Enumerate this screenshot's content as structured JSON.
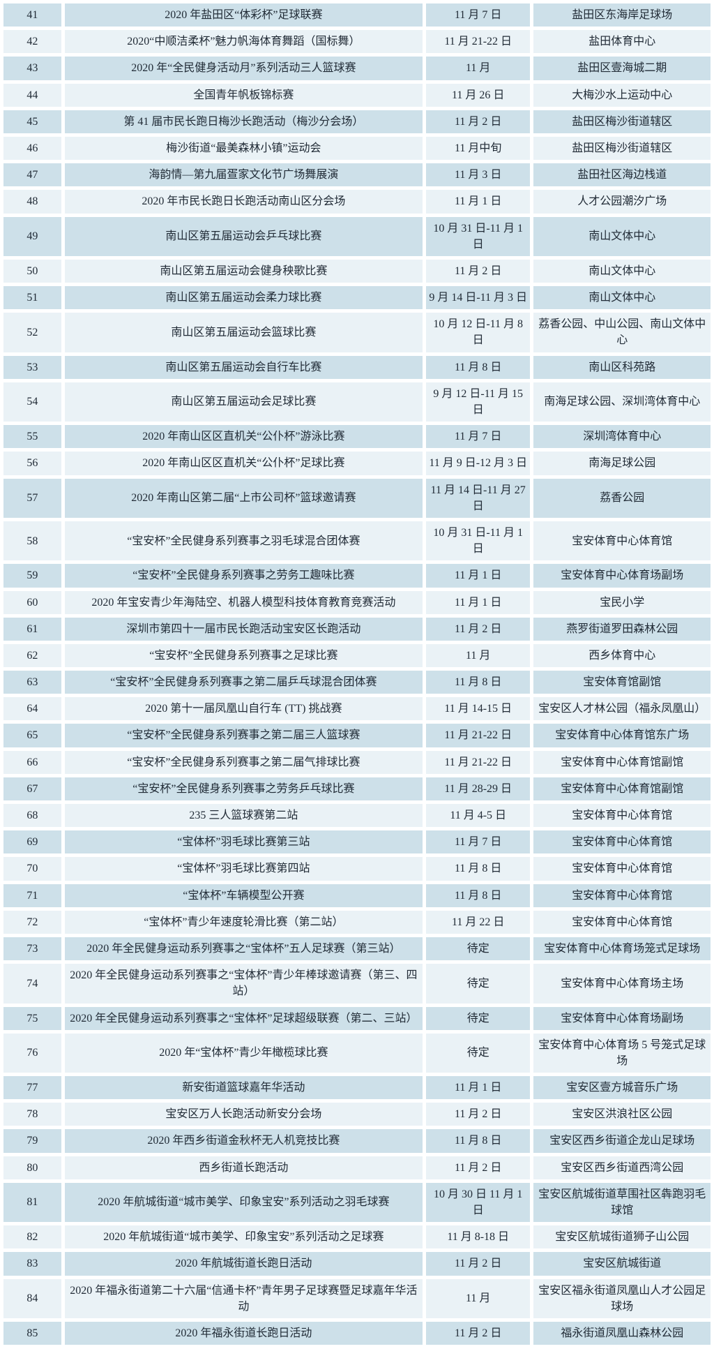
{
  "colors": {
    "row_dark": "#cde0e9",
    "row_light": "#eaf2f6",
    "text": "#212b36",
    "page_bg": "#ffffff"
  },
  "table": {
    "rows": [
      {
        "no": "41",
        "event": "2020 年盐田区“体彩杯”足球联赛",
        "date": "11 月 7 日",
        "venue": "盐田区东海岸足球场"
      },
      {
        "no": "42",
        "event": "2020“中顺洁柔杯”魅力帆海体育舞蹈（国标舞）",
        "date": "11 月 21-22 日",
        "venue": "盐田体育中心"
      },
      {
        "no": "43",
        "event": "2020 年“全民健身活动月”系列活动三人篮球赛",
        "date": "11 月",
        "venue": "盐田区壹海城二期"
      },
      {
        "no": "44",
        "event": "全国青年帆板锦标赛",
        "date": "11 月 26 日",
        "venue": "大梅沙水上运动中心"
      },
      {
        "no": "45",
        "event": "第 41 届市民长跑日梅沙长跑活动（梅沙分会场）",
        "date": "11 月 2 日",
        "venue": "盐田区梅沙街道辖区"
      },
      {
        "no": "46",
        "event": "梅沙街道“最美森林小镇”运动会",
        "date": "11 月中旬",
        "venue": "盐田区梅沙街道辖区"
      },
      {
        "no": "47",
        "event": "海韵情—第九届疍家文化节广场舞展演",
        "date": "11 月 3 日",
        "venue": "盐田社区海边栈道"
      },
      {
        "no": "48",
        "event": "2020 年市民长跑日长跑活动南山区分会场",
        "date": "11 月 1 日",
        "venue": "人才公园潮汐广场"
      },
      {
        "no": "49",
        "event": "南山区第五届运动会乒乓球比赛",
        "date": "10 月 31 日-11 月 1 日",
        "venue": "南山文体中心"
      },
      {
        "no": "50",
        "event": "南山区第五届运动会健身秧歌比赛",
        "date": "11 月 2 日",
        "venue": "南山文体中心"
      },
      {
        "no": "51",
        "event": "南山区第五届运动会柔力球比赛",
        "date": "9 月 14 日-11 月 3 日",
        "venue": "南山文体中心"
      },
      {
        "no": "52",
        "event": "南山区第五届运动会篮球比赛",
        "date": "10 月 12 日-11 月 8 日",
        "venue": "荔香公园、中山公园、南山文体中心"
      },
      {
        "no": "53",
        "event": "南山区第五届运动会自行车比赛",
        "date": "11 月 8 日",
        "venue": "南山区科苑路"
      },
      {
        "no": "54",
        "event": "南山区第五届运动会足球比赛",
        "date": "9 月 12 日-11 月 15 日",
        "venue": "南海足球公园、深圳湾体育中心"
      },
      {
        "no": "55",
        "event": "2020 年南山区区直机关“公仆杯”游泳比赛",
        "date": "11 月 7 日",
        "venue": "深圳湾体育中心"
      },
      {
        "no": "56",
        "event": "2020 年南山区区直机关“公仆杯”足球比赛",
        "date": "11 月 9 日-12 月 3 日",
        "venue": "南海足球公园"
      },
      {
        "no": "57",
        "event": "2020 年南山区第二届“上市公司杯”篮球邀请赛",
        "date": "11 月 14 日-11 月 27 日",
        "venue": "荔香公园"
      },
      {
        "no": "58",
        "event": "“宝安杯”全民健身系列赛事之羽毛球混合团体赛",
        "date": "10 月 31 日-11 月 1 日",
        "venue": "宝安体育中心体育馆"
      },
      {
        "no": "59",
        "event": "“宝安杯”全民健身系列赛事之劳务工趣味比赛",
        "date": "11 月 1 日",
        "venue": "宝安体育中心体育场副场"
      },
      {
        "no": "60",
        "event": "2020 年宝安青少年海陆空、机器人模型科技体育教育竞赛活动",
        "date": "11 月 1 日",
        "venue": "宝民小学"
      },
      {
        "no": "61",
        "event": "深圳市第四十一届市民长跑活动宝安区长跑活动",
        "date": "11 月 2 日",
        "venue": "燕罗街道罗田森林公园"
      },
      {
        "no": "62",
        "event": "“宝安杯”全民健身系列赛事之足球比赛",
        "date": "11 月",
        "venue": "西乡体育中心"
      },
      {
        "no": "63",
        "event": "“宝安杯”全民健身系列赛事之第二届乒乓球混合团体赛",
        "date": "11 月 8 日",
        "venue": "宝安体育馆副馆"
      },
      {
        "no": "64",
        "event": "2020 第十一届凤凰山自行车 (TT) 挑战赛",
        "date": "11 月 14-15 日",
        "venue": "宝安区人才林公园（福永凤凰山）"
      },
      {
        "no": "65",
        "event": "“宝安杯”全民健身系列赛事之第二届三人篮球赛",
        "date": "11 月 21-22 日",
        "venue": "宝安体育中心体育馆东广场"
      },
      {
        "no": "66",
        "event": "“宝安杯”全民健身系列赛事之第二届气排球比赛",
        "date": "11 月 21-22 日",
        "venue": "宝安体育中心体育馆副馆"
      },
      {
        "no": "67",
        "event": "“宝安杯”全民健身系列赛事之劳务乒乓球比赛",
        "date": "11 月 28-29 日",
        "venue": "宝安体育中心体育馆副馆"
      },
      {
        "no": "68",
        "event": "235 三人篮球赛第二站",
        "date": "11 月 4-5 日",
        "venue": "宝安体育中心体育馆"
      },
      {
        "no": "69",
        "event": "“宝体杯”羽毛球比赛第三站",
        "date": "11 月 7 日",
        "venue": "宝安体育中心体育馆"
      },
      {
        "no": "70",
        "event": "“宝体杯”羽毛球比赛第四站",
        "date": "11 月 8 日",
        "venue": "宝安体育中心体育馆"
      },
      {
        "no": "71",
        "event": "“宝体杯”车辆模型公开赛",
        "date": "11 月 8 日",
        "venue": "宝安体育中心体育馆"
      },
      {
        "no": "72",
        "event": "“宝体杯”青少年速度轮滑比赛（第二站）",
        "date": "11 月 22 日",
        "venue": "宝安体育中心体育馆"
      },
      {
        "no": "73",
        "event": "2020 年全民健身运动系列赛事之“宝体杯”五人足球赛（第三站）",
        "date": "待定",
        "venue": "宝安体育中心体育场笼式足球场"
      },
      {
        "no": "74",
        "event": "2020 年全民健身运动系列赛事之“宝体杯”青少年棒球邀请赛（第三、四站）",
        "date": "待定",
        "venue": "宝安体育中心体育场主场"
      },
      {
        "no": "75",
        "event": "2020 年全民健身运动系列赛事之“宝体杯”足球超级联赛（第二、三站）",
        "date": "待定",
        "venue": "宝安体育中心体育场副场"
      },
      {
        "no": "76",
        "event": "2020 年“宝体杯”青少年橄榄球比赛",
        "date": "待定",
        "venue": "宝安体育中心体育场 5 号笼式足球场"
      },
      {
        "no": "77",
        "event": "新安街道篮球嘉年华活动",
        "date": "11 月 1 日",
        "venue": "宝安区壹方城音乐广场"
      },
      {
        "no": "78",
        "event": "宝安区万人长跑活动新安分会场",
        "date": "11 月 2 日",
        "venue": "宝安区洪浪社区公园"
      },
      {
        "no": "79",
        "event": "2020 年西乡街道金秋杯无人机竞技比赛",
        "date": "11 月 8 日",
        "venue": "宝安区西乡街道企龙山足球场"
      },
      {
        "no": "80",
        "event": "西乡街道长跑活动",
        "date": "11 月 2 日",
        "venue": "宝安区西乡街道西湾公园"
      },
      {
        "no": "81",
        "event": "2020 年航城街道“城市美学、印象宝安”系列活动之羽毛球赛",
        "date": "10 月 30 日 11 月 1 日",
        "venue": "宝安区航城街道草围社区犇跑羽毛球馆"
      },
      {
        "no": "82",
        "event": "2020 年航城街道“城市美学、印象宝安”系列活动之足球赛",
        "date": "11 月 8-18 日",
        "venue": "宝安区航城街道狮子山公园"
      },
      {
        "no": "83",
        "event": "2020 年航城街道长跑日活动",
        "date": "11 月 2 日",
        "venue": "宝安区航城街道"
      },
      {
        "no": "84",
        "event": "2020 年福永街道第二十六届“信通卡杯”青年男子足球赛暨足球嘉年华活动",
        "date": "11 月",
        "venue": "宝安区福永街道凤凰山人才公园足球场"
      },
      {
        "no": "85",
        "event": "2020 年福永街道长跑日活动",
        "date": "11 月 2 日",
        "venue": "福永街道凤凰山森林公园"
      }
    ]
  }
}
